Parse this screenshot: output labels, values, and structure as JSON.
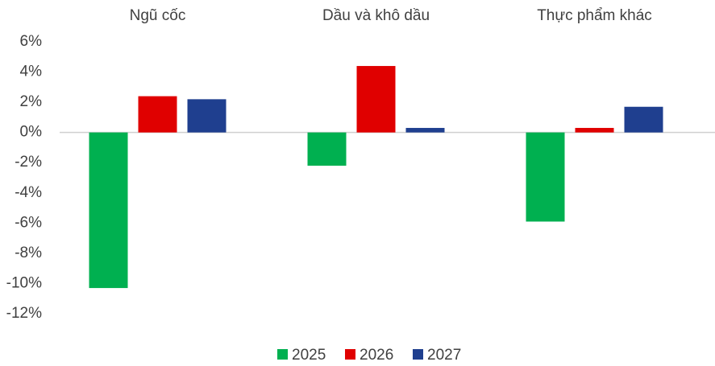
{
  "chart_data": {
    "type": "bar",
    "categories": [
      "Ngũ cốc",
      "Dầu và khô dầu",
      "Thực phẩm khác"
    ],
    "series": [
      {
        "name": "2025",
        "color": "#00b050",
        "values": [
          -10.3,
          -2.2,
          -5.9
        ]
      },
      {
        "name": "2026",
        "color": "#e00000",
        "values": [
          2.4,
          4.4,
          0.3
        ]
      },
      {
        "name": "2027",
        "color": "#1f3f8f",
        "values": [
          2.2,
          0.3,
          1.7
        ]
      }
    ],
    "ylim": [
      -12,
      6
    ],
    "yticks": [
      {
        "value": -12,
        "label": "-12%"
      },
      {
        "value": -10,
        "label": "-10%"
      },
      {
        "value": -8,
        "label": "-8%"
      },
      {
        "value": -6,
        "label": "-6%"
      },
      {
        "value": -4,
        "label": "-4%"
      },
      {
        "value": -2,
        "label": "-2%"
      },
      {
        "value": 0,
        "label": "0%"
      },
      {
        "value": 2,
        "label": "2%"
      },
      {
        "value": 4,
        "label": "4%"
      },
      {
        "value": 6,
        "label": "6%"
      }
    ],
    "legend": "bottom"
  }
}
